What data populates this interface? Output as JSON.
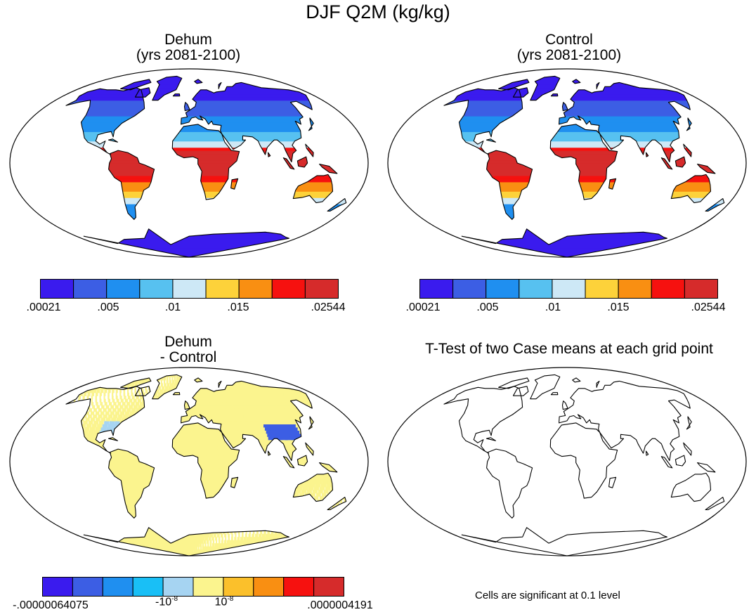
{
  "figure": {
    "title": "DJF Q2M (kg/kg)"
  },
  "panels": [
    {
      "id": "dehum",
      "title_line1": "Dehum",
      "title_line2": "(yrs 2081-2100)",
      "kind": "field"
    },
    {
      "id": "control",
      "title_line1": "Control",
      "title_line2": "(yrs 2081-2100)",
      "kind": "field"
    },
    {
      "id": "diff",
      "title_line1": "Dehum",
      "title_line2": "- Control",
      "kind": "diff"
    },
    {
      "id": "ttest",
      "title_line1": "T-Test of two Case means at each grid point",
      "title_line2": "",
      "kind": "blank"
    }
  ],
  "colorbars": {
    "field": {
      "colors": [
        "#3a1bee",
        "#3c5ee4",
        "#1f8ff0",
        "#57c1f0",
        "#cde8f6",
        "#fdd23a",
        "#f98f12",
        "#f6110f",
        "#d62b2b"
      ],
      "labels": [
        ".00021",
        ".005",
        ".01",
        ".015",
        ".02544"
      ]
    },
    "diff": {
      "colors": [
        "#3a1bee",
        "#3c5ee4",
        "#1f8ff0",
        "#19bff6",
        "#a6d4f2",
        "#fbf48e",
        "#fbc02b",
        "#f98f12",
        "#f6110f",
        "#d62b2b"
      ],
      "labels": [
        "-.00000064075",
        "-10",
        "10",
        ".0000004191"
      ],
      "exponents": [
        "-8",
        "-8"
      ]
    }
  },
  "significance_note": "Cells are significant at 0.1 level"
}
